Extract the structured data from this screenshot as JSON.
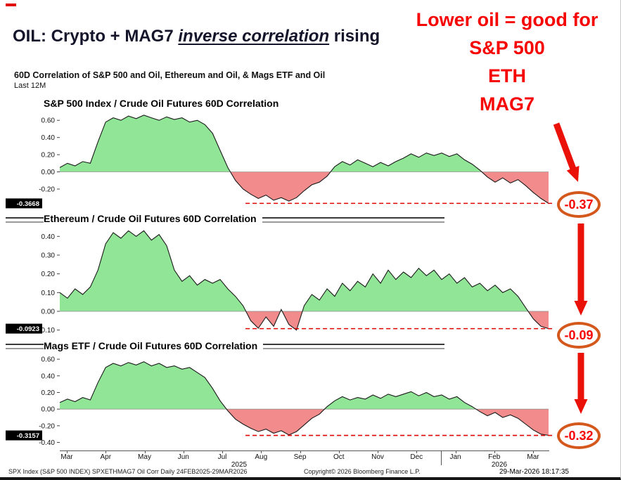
{
  "header": {
    "title_prefix": "OIL: Crypto + MAG7 ",
    "title_emphasis": "inverse correlation",
    "title_suffix": " rising",
    "subtitle": "60D Correlation of S&P 500 and Oil, Ethereum and Oil, & Mags ETF and Oil",
    "period": "Last 12M"
  },
  "annotation": {
    "line1": "Lower oil = good for",
    "line2": "S&P 500",
    "line3": "ETH",
    "line4": "MAG7"
  },
  "chart_data": [
    {
      "type": "area",
      "title": "S&P 500 Index / Crude Oil Futures 60D Correlation",
      "ylim": [
        -0.47,
        0.7
      ],
      "yticks": [
        0.6,
        0.4,
        0.2,
        0.0,
        -0.2
      ],
      "last_value": -0.3668,
      "last_label": "-0.3668",
      "callout": "-0.37",
      "dash_start_frac": 0.38,
      "values": [
        0.05,
        0.1,
        0.07,
        0.12,
        0.1,
        0.35,
        0.58,
        0.63,
        0.6,
        0.65,
        0.62,
        0.66,
        0.63,
        0.6,
        0.64,
        0.61,
        0.63,
        0.58,
        0.6,
        0.55,
        0.45,
        0.25,
        0.05,
        -0.1,
        -0.2,
        -0.26,
        -0.31,
        -0.27,
        -0.33,
        -0.3,
        -0.34,
        -0.3,
        -0.22,
        -0.15,
        -0.12,
        -0.05,
        0.06,
        0.12,
        0.08,
        0.14,
        0.1,
        0.06,
        0.11,
        0.07,
        0.12,
        0.16,
        0.21,
        0.17,
        0.22,
        0.19,
        0.22,
        0.18,
        0.21,
        0.14,
        0.09,
        0.02,
        -0.06,
        -0.12,
        -0.07,
        -0.13,
        -0.09,
        -0.16,
        -0.24,
        -0.31,
        -0.3668
      ]
    },
    {
      "type": "area",
      "title": "Ethereum / Crude Oil Futures 60D Correlation",
      "ylim": [
        -0.135,
        0.45
      ],
      "yticks": [
        0.4,
        0.3,
        0.2,
        0.1,
        0.0,
        -0.1
      ],
      "last_value": -0.0923,
      "last_label": "-0.0923",
      "callout": "-0.09",
      "dash_start_frac": 0.38,
      "values": [
        0.1,
        0.07,
        0.12,
        0.09,
        0.13,
        0.22,
        0.36,
        0.42,
        0.39,
        0.43,
        0.4,
        0.43,
        0.38,
        0.41,
        0.35,
        0.22,
        0.16,
        0.19,
        0.14,
        0.17,
        0.15,
        0.17,
        0.12,
        0.08,
        0.03,
        -0.05,
        -0.09,
        -0.03,
        -0.08,
        0.01,
        -0.07,
        -0.1,
        0.03,
        0.09,
        0.06,
        0.12,
        0.08,
        0.15,
        0.11,
        0.16,
        0.13,
        0.2,
        0.15,
        0.22,
        0.17,
        0.21,
        0.18,
        0.23,
        0.19,
        0.22,
        0.17,
        0.2,
        0.15,
        0.18,
        0.13,
        0.15,
        0.11,
        0.14,
        0.1,
        0.12,
        0.08,
        0.02,
        -0.04,
        -0.08,
        -0.0923
      ]
    },
    {
      "type": "area",
      "title": "Mags ETF / Crude Oil Futures 60D Correlation",
      "ylim": [
        -0.48,
        0.66
      ],
      "yticks": [
        0.6,
        0.4,
        0.2,
        0.0,
        -0.2,
        -0.4
      ],
      "last_value": -0.3157,
      "last_label": "-0.3157",
      "callout": "-0.32",
      "dash_start_frac": 0.38,
      "values": [
        0.08,
        0.12,
        0.09,
        0.14,
        0.11,
        0.32,
        0.5,
        0.55,
        0.52,
        0.56,
        0.53,
        0.57,
        0.52,
        0.55,
        0.5,
        0.52,
        0.48,
        0.5,
        0.44,
        0.38,
        0.25,
        0.1,
        -0.02,
        -0.12,
        -0.18,
        -0.23,
        -0.27,
        -0.24,
        -0.29,
        -0.26,
        -0.31,
        -0.27,
        -0.19,
        -0.11,
        -0.06,
        0.03,
        0.1,
        0.15,
        0.11,
        0.14,
        0.12,
        0.17,
        0.13,
        0.18,
        0.15,
        0.18,
        0.21,
        0.16,
        0.2,
        0.15,
        0.17,
        0.12,
        0.15,
        0.08,
        0.03,
        -0.03,
        -0.08,
        -0.04,
        -0.1,
        -0.07,
        -0.11,
        -0.18,
        -0.25,
        -0.3,
        -0.3157
      ]
    }
  ],
  "xaxis": {
    "months": [
      "Mar",
      "Apr",
      "May",
      "Jun",
      "Jul",
      "Aug",
      "Sep",
      "Oct",
      "Nov",
      "Dec",
      "Jan",
      "Feb",
      "Mar"
    ],
    "year_left": "2025",
    "year_right": "2026"
  },
  "footer": {
    "left": "SPX Index (S&P 500 INDEX) SPXETHMAG7 Oil Corr Daily 24FEB2025-29MAR2026",
    "center": "Copyright© 2026 Bloomberg Finance L.P.",
    "right": "29-Mar-2026 18:17:35"
  },
  "colors": {
    "positive_fill": "#90e596",
    "negative_fill": "#f28c8c",
    "line": "#1a1a1a",
    "dashed": "#e00000",
    "annotation": "#f60505",
    "arrow": "#ea1108",
    "callout_border": "#d4581c"
  }
}
